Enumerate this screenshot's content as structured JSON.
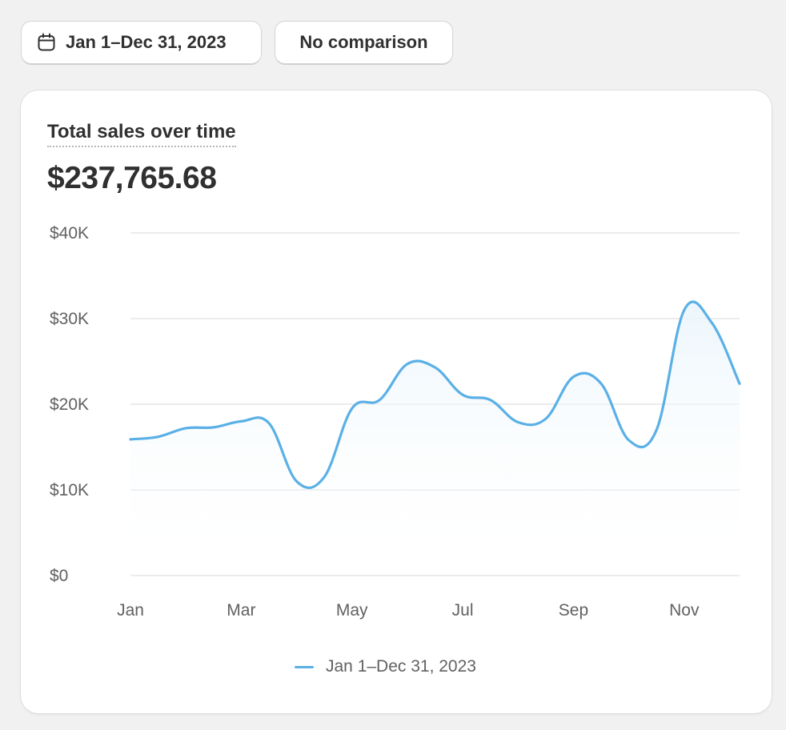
{
  "toolbar": {
    "date_range_label": "Jan 1–Dec 31, 2023",
    "comparison_label": "No comparison",
    "calendar_icon": "calendar-icon"
  },
  "card": {
    "title": "Total sales over time",
    "total_value": "$237,765.68"
  },
  "colors": {
    "line": "#5ab0e6",
    "grid": "#e6e6e6",
    "background": "#f1f1f1"
  },
  "chart_data": {
    "type": "line",
    "y_ticks": [
      "$40K",
      "$30K",
      "$20K",
      "$10K",
      "$0"
    ],
    "x_ticks": [
      "Jan",
      "Mar",
      "May",
      "Jul",
      "Sep",
      "Nov"
    ],
    "ylim": [
      0,
      40000
    ],
    "grid": true,
    "legend_position": "bottom-center",
    "series": [
      {
        "name": "Jan 1–Dec 31, 2023",
        "x": [
          "Jan 1",
          "Jan 15",
          "Feb 1",
          "Feb 15",
          "Mar 1",
          "Mar 15",
          "Apr 1",
          "Apr 15",
          "May 1",
          "May 15",
          "Jun 1",
          "Jun 15",
          "Jul 1",
          "Jul 15",
          "Aug 1",
          "Aug 15",
          "Sep 1",
          "Sep 15",
          "Oct 1",
          "Oct 15",
          "Nov 1",
          "Nov 15",
          "Dec 1"
        ],
        "values": [
          15900,
          16200,
          17200,
          17300,
          18000,
          17800,
          11000,
          11500,
          19500,
          20500,
          24700,
          24300,
          21100,
          20500,
          17900,
          18300,
          23200,
          22400,
          15800,
          17000,
          31000,
          29500,
          22400
        ]
      }
    ]
  }
}
